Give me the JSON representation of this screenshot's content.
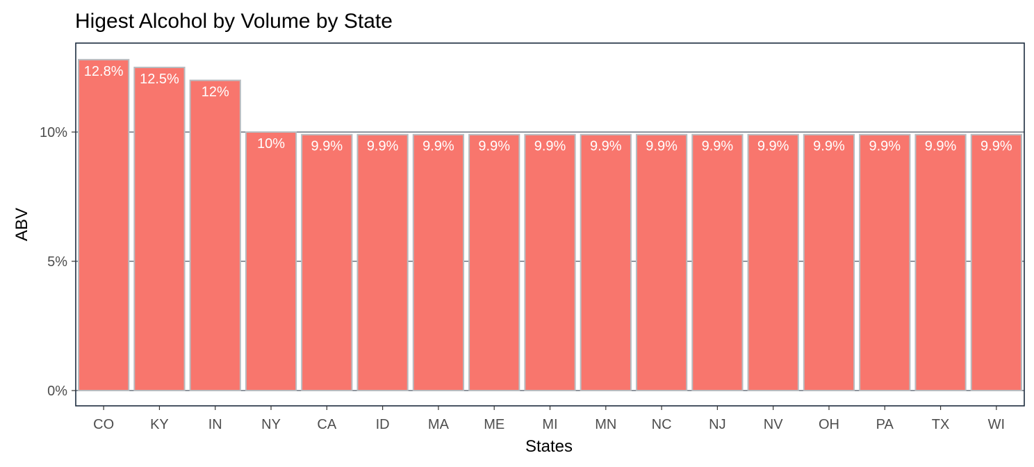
{
  "chart_data": {
    "type": "bar",
    "title": "Higest Alcohol by Volume by State",
    "xlabel": "States",
    "ylabel": "ABV",
    "categories": [
      "CO",
      "KY",
      "IN",
      "NY",
      "CA",
      "ID",
      "MA",
      "ME",
      "MI",
      "MN",
      "NC",
      "NJ",
      "NV",
      "OH",
      "PA",
      "TX",
      "WI"
    ],
    "values": [
      12.8,
      12.5,
      12,
      10,
      9.9,
      9.9,
      9.9,
      9.9,
      9.9,
      9.9,
      9.9,
      9.9,
      9.9,
      9.9,
      9.9,
      9.9,
      9.9
    ],
    "value_labels": [
      "12.8%",
      "12.5%",
      "12%",
      "10%",
      "9.9%",
      "9.9%",
      "9.9%",
      "9.9%",
      "9.9%",
      "9.9%",
      "9.9%",
      "9.9%",
      "9.9%",
      "9.9%",
      "9.9%",
      "9.9%",
      "9.9%"
    ],
    "yticks": [
      0,
      5,
      10
    ],
    "ytick_labels": [
      "0%",
      "5%",
      "10%"
    ],
    "ylim": [
      0,
      13.2
    ],
    "grid": "horizontal major",
    "colors": {
      "bar_fill": "#f8766d",
      "bar_outline": "#b8bcc0",
      "panel_border": "#1c2b3e",
      "gridline": "#1c2b3e",
      "label_text": "#ffffff"
    }
  }
}
